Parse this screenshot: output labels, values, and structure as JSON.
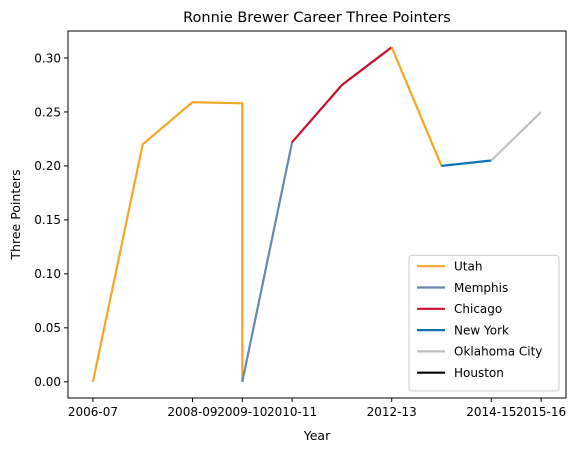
{
  "chart_data": {
    "type": "line",
    "title": "Ronnie Brewer Career Three Pointers",
    "xlabel": "Year",
    "ylabel": "Three Pointers",
    "x_ticks": [
      "2006-07",
      "2008-09",
      "2009-10",
      "2010-11",
      "2012-13",
      "2014-15",
      "2015-16"
    ],
    "x_tick_positions": [
      0,
      2,
      3,
      4,
      6,
      8,
      9
    ],
    "xlim": [
      -0.5,
      9.5
    ],
    "ylim": [
      -0.015,
      0.325
    ],
    "y_ticks": [
      "0.00",
      "0.05",
      "0.10",
      "0.15",
      "0.20",
      "0.25",
      "0.30"
    ],
    "y_tick_values": [
      0,
      0.05,
      0.1,
      0.15,
      0.2,
      0.25,
      0.3
    ],
    "grid": false,
    "legend_position": "lower-right",
    "series": [
      {
        "name": "Utah",
        "color": "#F5A623",
        "x": [
          0,
          1,
          2,
          3,
          3
        ],
        "y": [
          0.0,
          0.22,
          0.259,
          0.258,
          0.0
        ]
      },
      {
        "name": "Memphis",
        "color": "#6688B2",
        "x": [
          3,
          4
        ],
        "y": [
          0.0,
          0.222
        ]
      },
      {
        "name": "Chicago",
        "color": "#C8102E",
        "x": [
          4,
          5,
          6
        ],
        "y": [
          0.222,
          0.275,
          0.31
        ]
      },
      {
        "name": "Utah",
        "color": "#F5A623",
        "x": [
          6,
          7
        ],
        "y": [
          0.31,
          0.2
        ]
      },
      {
        "name": "New York",
        "color": "#0F73B8",
        "x": [
          7,
          8
        ],
        "y": [
          0.2,
          0.205
        ]
      },
      {
        "name": "Oklahoma City",
        "color": "#BFBFBF",
        "x": [
          8,
          9
        ],
        "y": [
          0.205,
          0.25
        ]
      }
    ],
    "legend": [
      {
        "name": "Utah",
        "color": "#F5A623"
      },
      {
        "name": "Memphis",
        "color": "#6688B2"
      },
      {
        "name": "Chicago",
        "color": "#C8102E"
      },
      {
        "name": "New York",
        "color": "#0F73B8"
      },
      {
        "name": "Oklahoma City",
        "color": "#BFBFBF"
      },
      {
        "name": "Houston",
        "color": "#000000"
      }
    ]
  }
}
